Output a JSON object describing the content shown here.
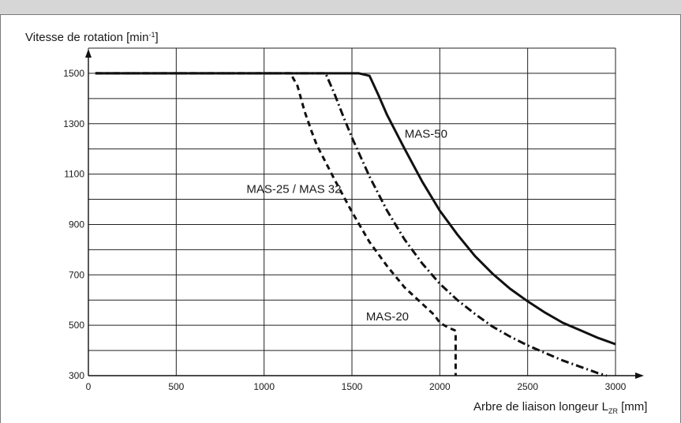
{
  "chart_data": {
    "type": "line",
    "title": "",
    "ylabel": "Vitesse de rotation [min",
    "ylabel_sup": "-1",
    "ylabel_tail": "]",
    "xlabel": "Arbre de liaison longeur L",
    "xlabel_sub": "ZR",
    "xlabel_tail": " [mm]",
    "xlim": [
      0,
      3000
    ],
    "ylim": [
      300,
      1600
    ],
    "x_ticks": [
      0,
      500,
      1000,
      1500,
      2000,
      2500,
      3000
    ],
    "y_ticks": [
      300,
      500,
      700,
      900,
      1100,
      1300,
      1500
    ],
    "x_gridlines": [
      0,
      500,
      1000,
      1500,
      2000,
      2500,
      3000
    ],
    "y_gridlines": [
      300,
      400,
      500,
      600,
      700,
      800,
      900,
      1000,
      1100,
      1200,
      1300,
      1400,
      1500,
      1600
    ],
    "grid": true,
    "series": [
      {
        "name": "MAS-50",
        "style": "solid",
        "points": [
          [
            40,
            1500
          ],
          [
            1540,
            1500
          ],
          [
            1600,
            1490
          ],
          [
            1650,
            1415
          ],
          [
            1700,
            1335
          ],
          [
            1800,
            1200
          ],
          [
            1900,
            1070
          ],
          [
            2000,
            955
          ],
          [
            2100,
            860
          ],
          [
            2200,
            775
          ],
          [
            2300,
            705
          ],
          [
            2400,
            645
          ],
          [
            2500,
            595
          ],
          [
            2600,
            550
          ],
          [
            2700,
            510
          ],
          [
            2800,
            480
          ],
          [
            2900,
            450
          ],
          [
            3000,
            425
          ]
        ],
        "label_pos": [
          1800,
          1245
        ]
      },
      {
        "name": "MAS-25 / MAS 32",
        "style": "dashdot",
        "points": [
          [
            40,
            1500
          ],
          [
            1350,
            1500
          ],
          [
            1400,
            1420
          ],
          [
            1450,
            1330
          ],
          [
            1500,
            1245
          ],
          [
            1600,
            1090
          ],
          [
            1700,
            955
          ],
          [
            1800,
            840
          ],
          [
            1900,
            745
          ],
          [
            2000,
            665
          ],
          [
            2100,
            600
          ],
          [
            2200,
            545
          ],
          [
            2300,
            495
          ],
          [
            2400,
            455
          ],
          [
            2500,
            420
          ],
          [
            2600,
            390
          ],
          [
            2700,
            360
          ],
          [
            2800,
            335
          ],
          [
            2900,
            310
          ],
          [
            2950,
            300
          ]
        ],
        "label_pos": [
          900,
          1025
        ]
      },
      {
        "name": "MAS-20",
        "style": "dashed",
        "points": [
          [
            40,
            1500
          ],
          [
            1150,
            1500
          ],
          [
            1190,
            1450
          ],
          [
            1230,
            1350
          ],
          [
            1270,
            1270
          ],
          [
            1300,
            1215
          ],
          [
            1400,
            1080
          ],
          [
            1500,
            950
          ],
          [
            1600,
            830
          ],
          [
            1700,
            735
          ],
          [
            1800,
            650
          ],
          [
            1900,
            585
          ],
          [
            1970,
            540
          ],
          [
            2000,
            510
          ],
          [
            2050,
            490
          ],
          [
            2085,
            480
          ],
          [
            2090,
            465
          ],
          [
            2090,
            300
          ]
        ],
        "label_pos": [
          1580,
          520
        ]
      }
    ]
  }
}
